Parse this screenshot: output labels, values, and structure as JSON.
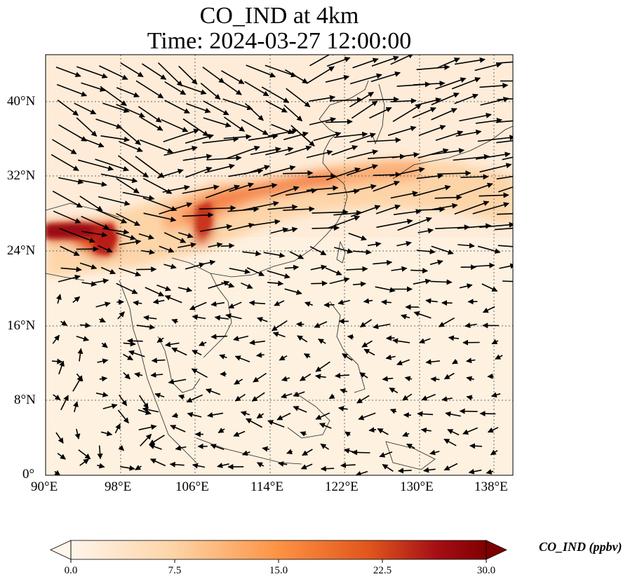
{
  "title": {
    "line1": "CO_IND at 4km",
    "line2": "Time: 2024-03-27 12:00:00"
  },
  "map": {
    "lon_range": [
      90,
      140
    ],
    "lat_range": [
      0,
      45
    ],
    "x_ticks": [
      "90°E",
      "98°E",
      "106°E",
      "114°E",
      "122°E",
      "130°E",
      "138°E"
    ],
    "y_ticks": [
      "0°",
      "8°N",
      "16°N",
      "24°N",
      "32°N",
      "40°N"
    ],
    "field": "CO_IND",
    "plume_description": "high CO along ~24-31N from 90E eastward to Japan",
    "wind_vectors": "westerly over north, weak variable winds in south"
  },
  "colorbar": {
    "label": "CO_IND (ppbv)",
    "ticks": [
      "0.0",
      "7.5",
      "15.0",
      "22.5",
      "30.0"
    ],
    "range": [
      0,
      30
    ],
    "colormap": [
      "#fff5eb",
      "#fdd3a6",
      "#fd9243",
      "#e0551c",
      "#a50f15",
      "#7f0000"
    ],
    "extend": "both"
  }
}
